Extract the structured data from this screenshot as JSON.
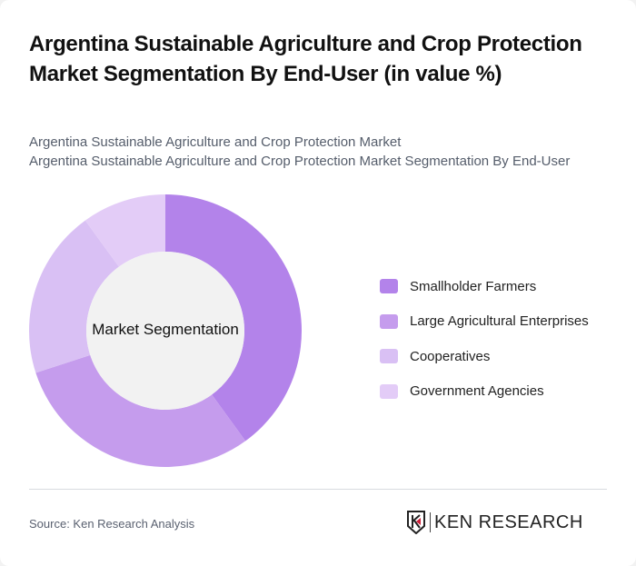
{
  "header": {
    "title": "Argentina Sustainable Agriculture and Crop Protection Market Segmentation By End-User (in value %)",
    "subtitle_line1": "Argentina Sustainable Agriculture and Crop Protection Market",
    "subtitle_line2": "Argentina Sustainable Agriculture and Crop Protection Market Segmentation By End-User"
  },
  "chart": {
    "center_label": "Market Segmentation"
  },
  "chart_data": {
    "type": "pie",
    "subtype": "donut",
    "title": "Argentina Sustainable Agriculture and Crop Protection Market Segmentation By End-User (in value %)",
    "center_label": "Market Segmentation",
    "categories": [
      "Smallholder Farmers",
      "Large Agricultural Enterprises",
      "Cooperatives",
      "Government Agencies"
    ],
    "values": [
      40,
      30,
      20,
      10
    ],
    "colors": [
      "#b383ea",
      "#c59ced",
      "#d9c0f4",
      "#e3ccf7"
    ],
    "legend_position": "right"
  },
  "legend": {
    "items": [
      {
        "label": "Smallholder Farmers",
        "color": "#b383ea"
      },
      {
        "label": "Large Agricultural Enterprises",
        "color": "#c59ced"
      },
      {
        "label": "Cooperatives",
        "color": "#d9c0f4"
      },
      {
        "label": "Government Agencies",
        "color": "#e3ccf7"
      }
    ]
  },
  "footer": {
    "source": "Source: Ken Research Analysis",
    "logo_text": "KEN RESEARCH"
  }
}
